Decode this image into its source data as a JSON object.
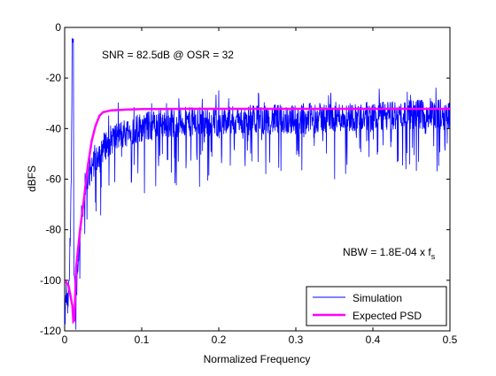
{
  "chart_data": {
    "type": "line",
    "title": "",
    "xlabel": "Normalized Frequency",
    "ylabel": "dBFS",
    "xlim": [
      0,
      0.5
    ],
    "ylim": [
      -120,
      0
    ],
    "x_ticks": [
      "0",
      "0.1",
      "0.2",
      "0.3",
      "0.4",
      "0.5"
    ],
    "y_ticks": [
      "0",
      "-20",
      "-40",
      "-60",
      "-80",
      "-100",
      "-120"
    ],
    "x_tick_values": [
      0,
      0.1,
      0.2,
      0.3,
      0.4,
      0.5
    ],
    "y_tick_values": [
      0,
      -20,
      -40,
      -60,
      -80,
      -100,
      -120
    ],
    "grid": false,
    "legend_position": "bottom-right",
    "annotations": {
      "snr_text": "SNR = 82.5dB @ OSR = 32",
      "nbw_text": "NBW = 1.8E-04 x f",
      "nbw_subscript": "s"
    },
    "series": [
      {
        "name": "Simulation",
        "color": "#0000ff",
        "style": "noisy spectrum (approximate envelope)",
        "x": [
          0.0,
          0.002,
          0.004,
          0.006,
          0.008,
          0.01,
          0.012,
          0.014,
          0.016,
          0.018,
          0.02,
          0.025,
          0.03,
          0.04,
          0.05,
          0.06,
          0.08,
          0.1,
          0.12,
          0.15,
          0.2,
          0.25,
          0.3,
          0.35,
          0.4,
          0.45,
          0.5
        ],
        "values": [
          -120,
          -105,
          -112,
          -100,
          -75,
          -6,
          -95,
          -110,
          -100,
          -90,
          -80,
          -68,
          -60,
          -52,
          -48,
          -45,
          -42,
          -40,
          -39,
          -38,
          -38,
          -37,
          -37,
          -36,
          -36,
          -35,
          -35
        ]
      },
      {
        "name": "Expected PSD",
        "color": "#ff00ff",
        "style": "smooth",
        "x": [
          0.0,
          0.005,
          0.01,
          0.012,
          0.015,
          0.02,
          0.025,
          0.03,
          0.035,
          0.04,
          0.045,
          0.05,
          0.06,
          0.08,
          0.1,
          0.15,
          0.2,
          0.3,
          0.4,
          0.5
        ],
        "values": [
          -100,
          -102,
          -110,
          -120,
          -95,
          -80,
          -68,
          -55,
          -45,
          -39,
          -35,
          -33.5,
          -32.8,
          -32.5,
          -32.3,
          -32.2,
          -32.2,
          -32.2,
          -32.2,
          -32.2
        ]
      }
    ]
  }
}
